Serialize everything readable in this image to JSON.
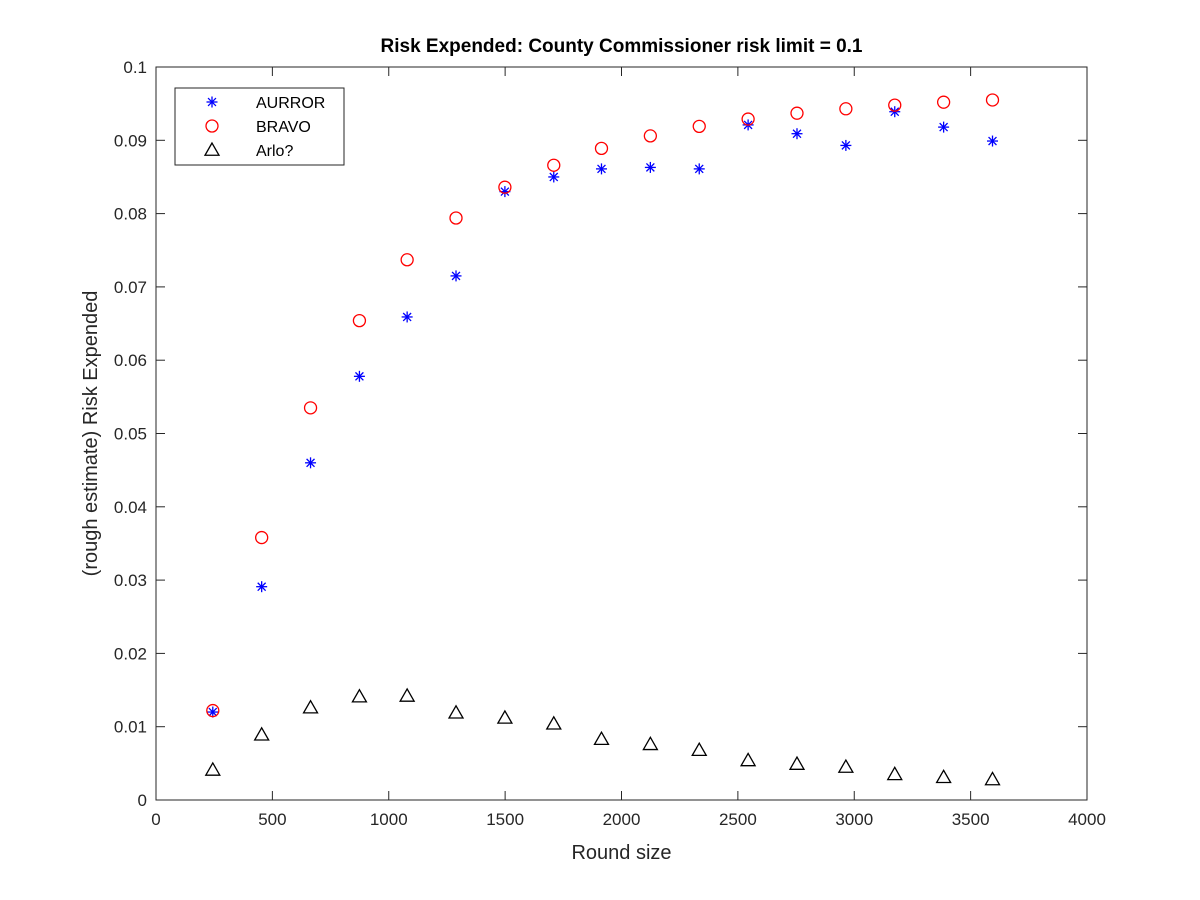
{
  "chart_data": {
    "type": "scatter",
    "title": "Risk Expended: County Commissioner risk limit = 0.1",
    "xlabel": "Round size",
    "ylabel": "(rough estimate) Risk Expended",
    "xlim": [
      0,
      4000
    ],
    "ylim": [
      0,
      0.1
    ],
    "xticks": [
      "0",
      "500",
      "1000",
      "1500",
      "2000",
      "2500",
      "3000",
      "3500",
      "4000"
    ],
    "yticks": [
      "0",
      "0.01",
      "0.02",
      "0.03",
      "0.04",
      "0.05",
      "0.06",
      "0.07",
      "0.08",
      "0.09",
      "0.1"
    ],
    "grid": false,
    "legend_position": "top-left",
    "x": [
      244,
      454,
      664,
      874,
      1079,
      1289,
      1499,
      1709,
      1914,
      2124,
      2334,
      2544,
      2754,
      2964,
      3174,
      3384,
      3594
    ],
    "series": [
      {
        "name": "AURROR",
        "marker": "asterisk",
        "color": "#0000ff",
        "values": [
          0.012,
          0.0291,
          0.046,
          0.0578,
          0.0659,
          0.0715,
          0.083,
          0.085,
          0.0861,
          0.0863,
          0.0861,
          0.0921,
          0.0909,
          0.0893,
          0.0939,
          0.0918,
          0.0899
        ]
      },
      {
        "name": "BRAVO",
        "marker": "circle",
        "color": "#ff0000",
        "values": [
          0.0122,
          0.0358,
          0.0535,
          0.0654,
          0.0737,
          0.0794,
          0.0836,
          0.0866,
          0.0889,
          0.0906,
          0.0919,
          0.0929,
          0.0937,
          0.0943,
          0.0948,
          0.0952,
          0.0955
        ]
      },
      {
        "name": "Arlo?",
        "marker": "triangle",
        "color": "#000000",
        "values": [
          0.0041,
          0.0089,
          0.0126,
          0.0141,
          0.0142,
          0.0119,
          0.0112,
          0.0104,
          0.0083,
          0.0076,
          0.0068,
          0.0054,
          0.0049,
          0.0045,
          0.0035,
          0.0031,
          0.0028
        ]
      }
    ]
  }
}
